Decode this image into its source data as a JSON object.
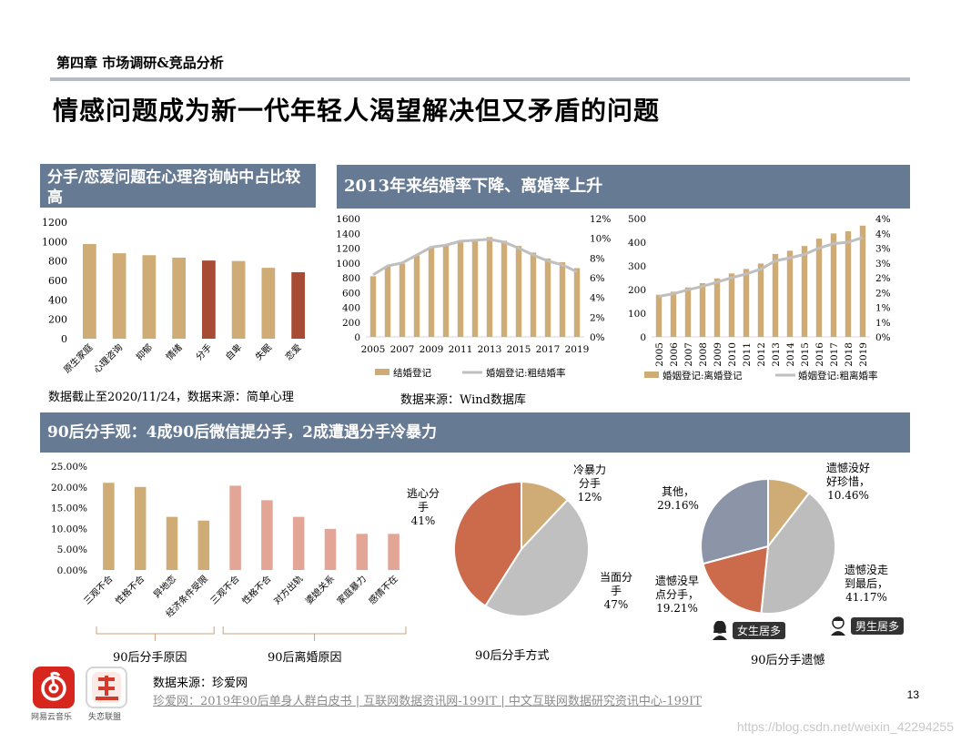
{
  "header": {
    "chapter": "第四章 市场调研&竞品分析",
    "title": "情感问题成为新一代年轻人渴望解决但又矛盾的问题"
  },
  "panel1": {
    "banner": "分手/恋爱问题在心理咨询帖中占比较高",
    "note": "数据截止至2020/11/24，数据来源：简单心理"
  },
  "panel2": {
    "banner": "2013年来结婚率下降、离婚率上升",
    "note": "数据来源：Wind数据库"
  },
  "panel3": {
    "banner": "90后分手观：4成90后微信提分手，2成遭遇分手冷暴力",
    "reason_label": "90后分手原因",
    "divorce_label": "90后离婚原因",
    "method_label": "90后分手方式",
    "regret_label": "90后分手遗憾",
    "female_badge": "女生居多",
    "male_badge": "男生居多"
  },
  "footer": {
    "source": "数据来源：珍爱网",
    "link": "珍爱网：2019年90后单身人群白皮书 | 互联网数据资讯网-199IT | 中文互联网数据研究资讯中心-199IT",
    "page": "13",
    "watermark": "https://blog.csdn.net/weixin_42294255",
    "logo1_label": "网易云音乐",
    "logo2_label": "失恋联盟"
  },
  "colors": {
    "tan": "#cfac75",
    "rust": "#a84b35",
    "grey_line": "#bfbfbf",
    "pink": "#e3a596",
    "orange_red": "#cc6a4c",
    "slate": "#8c95a8",
    "banner": "#677a93"
  },
  "chart_data": [
    {
      "id": "consult",
      "type": "bar",
      "categories": [
        "原生家庭",
        "心理咨询",
        "抑郁",
        "情绪",
        "分手",
        "自卑",
        "失眠",
        "恋爱"
      ],
      "values": [
        975,
        880,
        860,
        835,
        805,
        800,
        730,
        685
      ],
      "highlight": [
        4,
        7
      ],
      "ylim": [
        0,
        1200
      ],
      "yticks": [
        "0",
        "200",
        "400",
        "600",
        "800",
        "1000",
        "1200"
      ]
    },
    {
      "id": "marriage",
      "type": "bar+line",
      "categories": [
        "2005",
        "2006",
        "2007",
        "2008",
        "2009",
        "2010",
        "2011",
        "2012",
        "2013",
        "2014",
        "2015",
        "2016",
        "2017",
        "2018",
        "2019"
      ],
      "xtick_labels": [
        "2005",
        "2007",
        "2009",
        "2011",
        "2013",
        "2015",
        "2017",
        "2019"
      ],
      "series": [
        {
          "name": "结婚登记",
          "type": "bar",
          "values": [
            820,
            950,
            990,
            1100,
            1210,
            1240,
            1300,
            1320,
            1350,
            1300,
            1230,
            1140,
            1060,
            1010,
            930
          ]
        },
        {
          "name": "婚姻登记:粗结婚率",
          "type": "line",
          "axis": "right",
          "values": [
            6.3,
            7.2,
            7.5,
            8.3,
            9.1,
            9.3,
            9.7,
            9.8,
            9.9,
            9.6,
            9.0,
            8.3,
            7.7,
            7.3,
            6.6
          ]
        }
      ],
      "ylim": [
        0,
        1600
      ],
      "yticks": [
        "0",
        "200",
        "400",
        "600",
        "800",
        "1000",
        "1200",
        "1400",
        "1600"
      ],
      "y2lim": [
        0,
        12
      ],
      "y2ticks": [
        "0%",
        "2%",
        "4%",
        "6%",
        "8%",
        "10%",
        "12%"
      ]
    },
    {
      "id": "divorce",
      "type": "bar+line",
      "categories": [
        "2005",
        "2006",
        "2007",
        "2008",
        "2009",
        "2010",
        "2011",
        "2012",
        "2013",
        "2014",
        "2015",
        "2016",
        "2017",
        "2018",
        "2019"
      ],
      "series": [
        {
          "name": "婚姻登记:离婚登记",
          "type": "bar",
          "values": [
            178,
            191,
            209,
            227,
            247,
            268,
            287,
            310,
            350,
            364,
            384,
            415,
            437,
            446,
            470
          ]
        },
        {
          "name": "婚姻登记:粗离婚率",
          "type": "line",
          "axis": "right",
          "values": [
            1.37,
            1.46,
            1.59,
            1.71,
            1.85,
            2.0,
            2.13,
            2.29,
            2.57,
            2.67,
            2.79,
            3.0,
            3.15,
            3.2,
            3.36
          ]
        }
      ],
      "ylim": [
        0,
        500
      ],
      "yticks": [
        "0",
        "100",
        "200",
        "300",
        "400",
        "500"
      ],
      "y2ticks": [
        "0%",
        "1%",
        "1%",
        "2%",
        "2%",
        "3%",
        "3%",
        "4%",
        "4%"
      ]
    },
    {
      "id": "reasons",
      "type": "bar",
      "categories": [
        "三观不合",
        "性格不合",
        "异地恋",
        "经济条件受限",
        "三观不合",
        "性格不合",
        "对方出轨",
        "婆媳关系",
        "家庭暴力",
        "感情不在"
      ],
      "groups": [
        {
          "name": "90后分手原因",
          "count": 4
        },
        {
          "name": "90后离婚原因",
          "count": 6
        }
      ],
      "values": [
        21.0,
        20.0,
        12.8,
        11.9,
        20.3,
        16.8,
        12.8,
        9.9,
        8.7,
        8.7
      ],
      "ylim": [
        0,
        25
      ],
      "yticks": [
        "0.00%",
        "5.00%",
        "10.00%",
        "15.00%",
        "20.00%",
        "25.00%"
      ]
    },
    {
      "id": "method",
      "type": "pie",
      "labels": [
        "冷暴力分手",
        "当面分手",
        "逃心分手"
      ],
      "label_lines": [
        [
          "冷暴力",
          "分手",
          "12%"
        ],
        [
          "当面分",
          "手",
          "47%"
        ],
        [
          "逃心分",
          "手",
          "41%"
        ]
      ],
      "values": [
        12,
        47,
        41
      ]
    },
    {
      "id": "regret",
      "type": "pie",
      "labels": [
        "遗憾没好好珍惜",
        "遗憾没走到最后",
        "遗憾没早点分手",
        "其他"
      ],
      "label_lines": [
        [
          "遗憾没好",
          "好珍惜，",
          "10.46%"
        ],
        [
          "遗憾没走",
          "到最后，",
          "41.17%"
        ],
        [
          "遗憾没早",
          "点分手，",
          "19.21%"
        ],
        [
          "其他，",
          "29.16%"
        ]
      ],
      "values": [
        10.46,
        41.17,
        19.21,
        29.16
      ]
    }
  ]
}
